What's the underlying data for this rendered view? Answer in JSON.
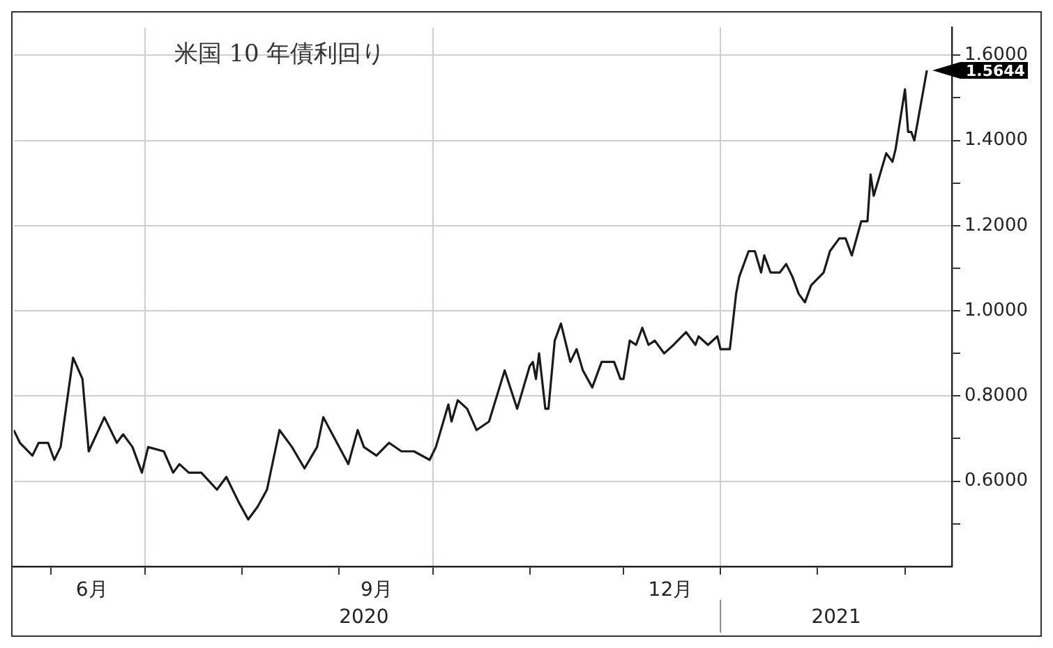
{
  "chart_data": {
    "type": "line",
    "title": "米国 10 年債利回り",
    "x": [
      "2020-05-20",
      "2020-05-22",
      "2020-05-26",
      "2020-05-28",
      "2020-05-31",
      "2020-06-02",
      "2020-06-04",
      "2020-06-08",
      "2020-06-11",
      "2020-06-13",
      "2020-06-18",
      "2020-06-22",
      "2020-06-24",
      "2020-06-27",
      "2020-06-30",
      "2020-07-02",
      "2020-07-07",
      "2020-07-10",
      "2020-07-12",
      "2020-07-15",
      "2020-07-19",
      "2020-07-24",
      "2020-07-27",
      "2020-07-31",
      "2020-08-03",
      "2020-08-06",
      "2020-08-09",
      "2020-08-13",
      "2020-08-17",
      "2020-08-21",
      "2020-08-25",
      "2020-08-27",
      "2020-09-04",
      "2020-09-07",
      "2020-09-09",
      "2020-09-13",
      "2020-09-17",
      "2020-09-21",
      "2020-09-25",
      "2020-09-30",
      "2020-10-02",
      "2020-10-06",
      "2020-10-07",
      "2020-10-09",
      "2020-10-12",
      "2020-10-15",
      "2020-10-19",
      "2020-10-24",
      "2020-10-28",
      "2020-11-01",
      "2020-11-02",
      "2020-11-03",
      "2020-11-04",
      "2020-11-06",
      "2020-11-07",
      "2020-11-09",
      "2020-11-11",
      "2020-11-14",
      "2020-11-16",
      "2020-11-18",
      "2020-11-21",
      "2020-11-24",
      "2020-11-28",
      "2020-11-30",
      "2020-12-01",
      "2020-12-03",
      "2020-12-05",
      "2020-12-07",
      "2020-12-09",
      "2020-12-11",
      "2020-12-14",
      "2020-12-17",
      "2020-12-21",
      "2020-12-24",
      "2020-12-25",
      "2020-12-28",
      "2020-12-31",
      "2021-01-01",
      "2021-01-04",
      "2021-01-06",
      "2021-01-07",
      "2021-01-10",
      "2021-01-12",
      "2021-01-14",
      "2021-01-15",
      "2021-01-17",
      "2021-01-20",
      "2021-01-22",
      "2021-01-24",
      "2021-01-26",
      "2021-01-28",
      "2021-01-30",
      "2021-02-03",
      "2021-02-05",
      "2021-02-08",
      "2021-02-10",
      "2021-02-12",
      "2021-02-15",
      "2021-02-17",
      "2021-02-18",
      "2021-02-19",
      "2021-02-23",
      "2021-02-25",
      "2021-02-26",
      "2021-03-01",
      "2021-03-02",
      "2021-03-03",
      "2021-03-04",
      "2021-03-08"
    ],
    "series": [
      {
        "color": "#1a1a1a",
        "values": [
          0.72,
          0.69,
          0.66,
          0.69,
          0.69,
          0.65,
          0.68,
          0.89,
          0.84,
          0.67,
          0.75,
          0.69,
          0.71,
          0.68,
          0.62,
          0.68,
          0.67,
          0.62,
          0.64,
          0.62,
          0.62,
          0.58,
          0.61,
          0.55,
          0.51,
          0.54,
          0.58,
          0.72,
          0.68,
          0.63,
          0.68,
          0.75,
          0.64,
          0.72,
          0.68,
          0.66,
          0.69,
          0.67,
          0.67,
          0.65,
          0.68,
          0.78,
          0.74,
          0.79,
          0.77,
          0.72,
          0.74,
          0.86,
          0.77,
          0.87,
          0.88,
          0.84,
          0.9,
          0.77,
          0.77,
          0.93,
          0.97,
          0.88,
          0.91,
          0.86,
          0.82,
          0.88,
          0.88,
          0.84,
          0.84,
          0.93,
          0.92,
          0.96,
          0.92,
          0.93,
          0.9,
          0.92,
          0.95,
          0.92,
          0.94,
          0.92,
          0.94,
          0.91,
          0.91,
          1.04,
          1.08,
          1.14,
          1.14,
          1.09,
          1.13,
          1.09,
          1.09,
          1.11,
          1.08,
          1.04,
          1.02,
          1.06,
          1.09,
          1.14,
          1.17,
          1.17,
          1.13,
          1.21,
          1.21,
          1.32,
          1.27,
          1.37,
          1.35,
          1.38,
          1.52,
          1.42,
          1.42,
          1.4,
          1.5644
        ]
      }
    ],
    "xlim": [
      "2020-05-20",
      "2021-03-16"
    ],
    "xticks": [
      {
        "value": "2020-06-01",
        "label": null
      },
      {
        "value": "2020-06-14",
        "label": "6月"
      },
      {
        "value": "2020-07-01",
        "label": null
      },
      {
        "value": "2020-08-01",
        "label": null
      },
      {
        "value": "2020-09-01",
        "label": null
      },
      {
        "value": "2020-09-13",
        "label": "9月"
      },
      {
        "value": "2020-10-01",
        "label": null
      },
      {
        "value": "2020-11-01",
        "label": null
      },
      {
        "value": "2020-12-01",
        "label": null
      },
      {
        "value": "2020-12-16",
        "label": "12月"
      },
      {
        "value": "2021-01-01",
        "label": null
      },
      {
        "value": "2021-02-01",
        "label": null
      },
      {
        "value": "2021-03-01",
        "label": null
      }
    ],
    "x2lim": [
      "2020-05-20",
      "2021-03-16"
    ],
    "x2ticks": [
      {
        "value": "2020-09-09",
        "label": "2020"
      },
      {
        "value": "2021-02-07",
        "label": "2021"
      }
    ],
    "ylim": [
      0.4,
      1.665
    ],
    "yticks": [
      {
        "value": 0.5,
        "label": null
      },
      {
        "value": 0.6,
        "label": "0.6000"
      },
      {
        "value": 0.7,
        "label": null
      },
      {
        "value": 0.8,
        "label": "0.8000"
      },
      {
        "value": 0.9,
        "label": null
      },
      {
        "value": 1.0,
        "label": "1.0000"
      },
      {
        "value": 1.1,
        "label": null
      },
      {
        "value": 1.2,
        "label": "1.2000"
      },
      {
        "value": 1.3,
        "label": null
      },
      {
        "value": 1.4,
        "label": "1.4000"
      },
      {
        "value": 1.5,
        "label": null
      },
      {
        "value": 1.6,
        "label": "1.6000"
      }
    ],
    "annotations": [
      {
        "text": "1.5644",
        "x": "2021-03-08",
        "y": 1.5644
      }
    ],
    "grid": true,
    "legend": false,
    "marker": "none",
    "line_style": "solid"
  }
}
